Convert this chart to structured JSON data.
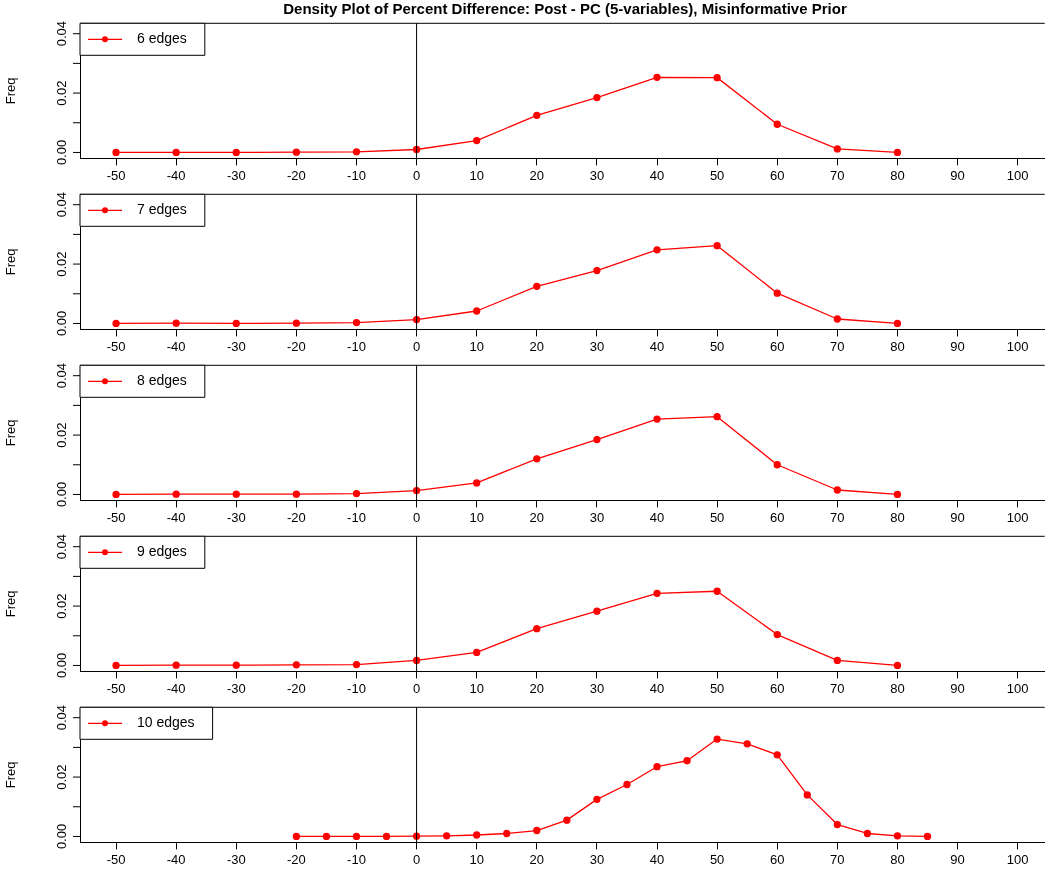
{
  "chart_data": [
    {
      "type": "line",
      "title": "Density Plot of Percent Difference: Post - PC (5-variables), Misinformative Prior",
      "ylabel": "Freq",
      "x": [
        -50,
        -40,
        -30,
        -20,
        -10,
        0,
        10,
        20,
        30,
        40,
        50,
        60,
        70,
        80
      ],
      "series": [
        {
          "name": "6 edges",
          "color": "#ff0000",
          "values": [
            0,
            0,
            0,
            0.0001,
            0.0002,
            0.001,
            0.004,
            0.0125,
            0.0185,
            0.0253,
            0.0252,
            0.0095,
            0.0012,
            0
          ]
        }
      ],
      "xlim": [
        -56,
        104.5
      ],
      "xticks": [
        -50,
        -40,
        -30,
        -20,
        -10,
        0,
        10,
        20,
        30,
        40,
        50,
        60,
        70,
        80,
        90,
        100
      ],
      "ylim": [
        -0.002,
        0.0435
      ],
      "yticks": [
        {
          "value": 0,
          "label": "0.00"
        },
        {
          "value": 0.01,
          "label": null
        },
        {
          "value": 0.02,
          "label": "0.02"
        },
        {
          "value": 0.03,
          "label": null
        },
        {
          "value": 0.04,
          "label": "0.04"
        }
      ],
      "ref_lines": [
        {
          "axis": "x",
          "value": 0,
          "color": "#000000"
        }
      ],
      "legend": "top left",
      "marker": "circle",
      "line_style": "solid",
      "grid": false
    },
    {
      "type": "line",
      "ylabel": "Freq",
      "x": [
        -50,
        -40,
        -30,
        -20,
        -10,
        0,
        10,
        20,
        30,
        40,
        50,
        60,
        70,
        80
      ],
      "series": [
        {
          "name": "7 edges",
          "color": "#ff0000",
          "values": [
            0,
            0.0001,
            0,
            0.0001,
            0.0003,
            0.0013,
            0.0042,
            0.0125,
            0.0178,
            0.0248,
            0.0262,
            0.0102,
            0.0015,
            0
          ]
        }
      ],
      "xlim": [
        -56,
        104.5
      ],
      "xticks": [
        -50,
        -40,
        -30,
        -20,
        -10,
        0,
        10,
        20,
        30,
        40,
        50,
        60,
        70,
        80,
        90,
        100
      ],
      "ylim": [
        -0.002,
        0.0435
      ],
      "yticks": [
        {
          "value": 0,
          "label": "0.00"
        },
        {
          "value": 0.01,
          "label": null
        },
        {
          "value": 0.02,
          "label": "0.02"
        },
        {
          "value": 0.03,
          "label": null
        },
        {
          "value": 0.04,
          "label": "0.04"
        }
      ],
      "ref_lines": [
        {
          "axis": "x",
          "value": 0,
          "color": "#000000"
        }
      ],
      "legend": "top left",
      "marker": "circle",
      "line_style": "solid",
      "grid": false
    },
    {
      "type": "line",
      "ylabel": "Freq",
      "x": [
        -50,
        -40,
        -30,
        -20,
        -10,
        0,
        10,
        20,
        30,
        40,
        50,
        60,
        70,
        80
      ],
      "series": [
        {
          "name": "8 edges",
          "color": "#ff0000",
          "values": [
            0,
            0.0001,
            0.0001,
            0.0001,
            0.0003,
            0.0013,
            0.0039,
            0.012,
            0.0185,
            0.0254,
            0.0262,
            0.01,
            0.0015,
            0
          ]
        }
      ],
      "xlim": [
        -56,
        104.5
      ],
      "xticks": [
        -50,
        -40,
        -30,
        -20,
        -10,
        0,
        10,
        20,
        30,
        40,
        50,
        60,
        70,
        80,
        90,
        100
      ],
      "ylim": [
        -0.002,
        0.0435
      ],
      "yticks": [
        {
          "value": 0,
          "label": "0.00"
        },
        {
          "value": 0.01,
          "label": null
        },
        {
          "value": 0.02,
          "label": "0.02"
        },
        {
          "value": 0.03,
          "label": null
        },
        {
          "value": 0.04,
          "label": "0.04"
        }
      ],
      "ref_lines": [
        {
          "axis": "x",
          "value": 0,
          "color": "#000000"
        }
      ],
      "legend": "top left",
      "marker": "circle",
      "line_style": "solid",
      "grid": false
    },
    {
      "type": "line",
      "ylabel": "Freq",
      "x": [
        -50,
        -40,
        -30,
        -20,
        -10,
        0,
        10,
        20,
        30,
        40,
        50,
        60,
        70,
        80
      ],
      "series": [
        {
          "name": "9 edges",
          "color": "#ff0000",
          "values": [
            0,
            0.0001,
            0.0001,
            0.0002,
            0.0003,
            0.0017,
            0.0044,
            0.0124,
            0.0183,
            0.0243,
            0.025,
            0.0104,
            0.0017,
            0
          ]
        }
      ],
      "xlim": [
        -56,
        104.5
      ],
      "xticks": [
        -50,
        -40,
        -30,
        -20,
        -10,
        0,
        10,
        20,
        30,
        40,
        50,
        60,
        70,
        80,
        90,
        100
      ],
      "ylim": [
        -0.002,
        0.0435
      ],
      "yticks": [
        {
          "value": 0,
          "label": "0.00"
        },
        {
          "value": 0.01,
          "label": null
        },
        {
          "value": 0.02,
          "label": "0.02"
        },
        {
          "value": 0.03,
          "label": null
        },
        {
          "value": 0.04,
          "label": "0.04"
        }
      ],
      "ref_lines": [
        {
          "axis": "x",
          "value": 0,
          "color": "#000000"
        }
      ],
      "legend": "top left",
      "marker": "circle",
      "line_style": "solid",
      "grid": false
    },
    {
      "type": "line",
      "ylabel": "Freq",
      "x": [
        -20,
        -15,
        -10,
        -5,
        0,
        5,
        10,
        15,
        20,
        25,
        30,
        35,
        40,
        45,
        50,
        55,
        60,
        65,
        70,
        75,
        80,
        85
      ],
      "series": [
        {
          "name": "10 edges",
          "color": "#ff0000",
          "values": [
            0,
            0,
            0,
            0,
            0.0001,
            0.0002,
            0.0005,
            0.001,
            0.002,
            0.0055,
            0.0125,
            0.0175,
            0.0235,
            0.0255,
            0.0328,
            0.0312,
            0.0275,
            0.014,
            0.004,
            0.001,
            0.0002,
            0
          ]
        }
      ],
      "xlim": [
        -56,
        104.5
      ],
      "xticks": [
        -50,
        -40,
        -30,
        -20,
        -10,
        0,
        10,
        20,
        30,
        40,
        50,
        60,
        70,
        80,
        90,
        100
      ],
      "ylim": [
        -0.002,
        0.0435
      ],
      "yticks": [
        {
          "value": 0,
          "label": "0.00"
        },
        {
          "value": 0.01,
          "label": null
        },
        {
          "value": 0.02,
          "label": "0.02"
        },
        {
          "value": 0.03,
          "label": null
        },
        {
          "value": 0.04,
          "label": "0.04"
        }
      ],
      "ref_lines": [
        {
          "axis": "x",
          "value": 0,
          "color": "#000000"
        }
      ],
      "legend": "top left",
      "marker": "circle",
      "line_style": "solid",
      "grid": false
    }
  ]
}
